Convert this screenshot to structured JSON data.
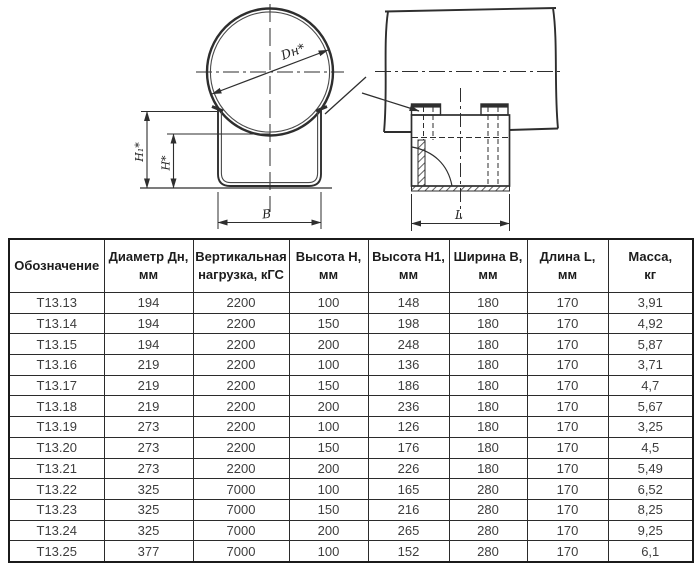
{
  "page": {
    "background_color": "#ffffff",
    "line_color": "#2e2e2e",
    "table_border_color": "#1b1b1b",
    "table_text_color": "#3d3d3d"
  },
  "drawing": {
    "front_view": {
      "diameter_label": "Dн*",
      "height1_label": "H₁*",
      "height_label": "H*",
      "width_label": "B"
    },
    "side_view": {
      "length_label": "L"
    }
  },
  "table": {
    "headers": [
      "Обозначение",
      "Диаметр Дн,\nмм",
      "Вертикальная\nнагрузка, кГС",
      "Высота Н,\nмм",
      "Высота Н1,\nмм",
      "Ширина В,\nмм",
      "Длина L,\nмм",
      "Масса,\nкг"
    ],
    "rows": [
      [
        "Т13.13",
        "194",
        "2200",
        "100",
        "148",
        "180",
        "170",
        "3,91"
      ],
      [
        "Т13.14",
        "194",
        "2200",
        "150",
        "198",
        "180",
        "170",
        "4,92"
      ],
      [
        "Т13.15",
        "194",
        "2200",
        "200",
        "248",
        "180",
        "170",
        "5,87"
      ],
      [
        "Т13.16",
        "219",
        "2200",
        "100",
        "136",
        "180",
        "170",
        "3,71"
      ],
      [
        "Т13.17",
        "219",
        "2200",
        "150",
        "186",
        "180",
        "170",
        "4,7"
      ],
      [
        "Т13.18",
        "219",
        "2200",
        "200",
        "236",
        "180",
        "170",
        "5,67"
      ],
      [
        "Т13.19",
        "273",
        "2200",
        "100",
        "126",
        "180",
        "170",
        "3,25"
      ],
      [
        "Т13.20",
        "273",
        "2200",
        "150",
        "176",
        "180",
        "170",
        "4,5"
      ],
      [
        "Т13.21",
        "273",
        "2200",
        "200",
        "226",
        "180",
        "170",
        "5,49"
      ],
      [
        "Т13.22",
        "325",
        "7000",
        "100",
        "165",
        "280",
        "170",
        "6,52"
      ],
      [
        "Т13.23",
        "325",
        "7000",
        "150",
        "216",
        "280",
        "170",
        "8,25"
      ],
      [
        "Т13.24",
        "325",
        "7000",
        "200",
        "265",
        "280",
        "170",
        "9,25"
      ],
      [
        "Т13.25",
        "377",
        "7000",
        "100",
        "152",
        "280",
        "170",
        "6,1"
      ]
    ]
  }
}
